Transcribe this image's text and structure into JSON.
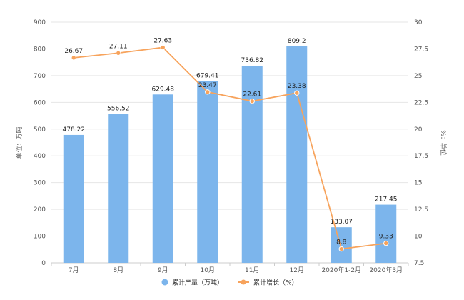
{
  "chart_data": {
    "type": "bar",
    "categories": [
      "7月",
      "8月",
      "9月",
      "10月",
      "11月",
      "12月",
      "2020年1-2月",
      "2020年3月"
    ],
    "series": [
      {
        "name": "累计产量（万吨）",
        "type": "bar",
        "axis": "left",
        "color": "#7cb5ec",
        "values": [
          478.22,
          556.52,
          629.48,
          679.41,
          736.82,
          809.2,
          133.07,
          217.45
        ]
      },
      {
        "name": "累计增长（%）",
        "type": "line",
        "axis": "right",
        "color": "#f7a35c",
        "values": [
          26.67,
          27.11,
          27.63,
          23.47,
          22.61,
          23.38,
          8.8,
          9.33
        ]
      }
    ],
    "y_left": {
      "label": "单位：万吨",
      "range": [
        0,
        900
      ],
      "ticks": [
        "0",
        "100",
        "200",
        "300",
        "400",
        "500",
        "600",
        "700",
        "800",
        "900"
      ]
    },
    "y_right": {
      "label": "%：单位",
      "range": [
        7.5,
        30
      ],
      "ticks": [
        "7.5",
        "10",
        "12.5",
        "15",
        "17.5",
        "20",
        "22.5",
        "25",
        "27.5",
        "30"
      ]
    },
    "grid": true,
    "legend_position": "bottom-center"
  }
}
